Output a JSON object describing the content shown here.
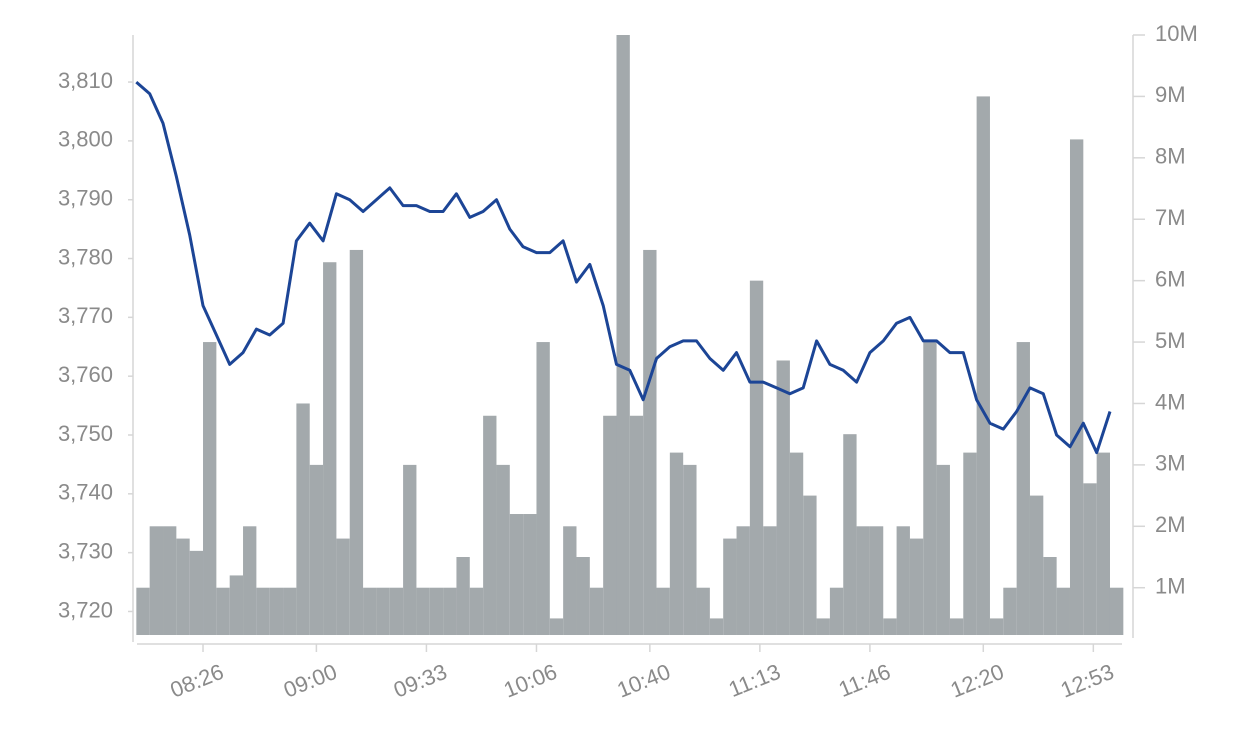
{
  "chart_data": {
    "type": "combo",
    "x": [
      "08:06",
      "08:10",
      "08:14",
      "08:18",
      "08:22",
      "08:26",
      "08:30",
      "08:34",
      "08:38",
      "08:42",
      "08:46",
      "08:50",
      "08:54",
      "08:58",
      "09:02",
      "09:06",
      "09:10",
      "09:14",
      "09:18",
      "09:22",
      "09:26",
      "09:30",
      "09:34",
      "09:38",
      "09:42",
      "09:46",
      "09:50",
      "09:54",
      "09:58",
      "10:02",
      "10:06",
      "10:10",
      "10:14",
      "10:18",
      "10:22",
      "10:26",
      "10:30",
      "10:34",
      "10:38",
      "10:42",
      "10:46",
      "10:50",
      "10:54",
      "10:58",
      "11:02",
      "11:06",
      "11:10",
      "11:14",
      "11:18",
      "11:22",
      "11:26",
      "11:30",
      "11:34",
      "11:38",
      "11:42",
      "11:46",
      "11:50",
      "11:54",
      "11:58",
      "12:02",
      "12:06",
      "12:10",
      "12:14",
      "12:18",
      "12:22",
      "12:26",
      "12:30",
      "12:34",
      "12:38",
      "12:42",
      "12:46",
      "12:50",
      "12:54",
      "12:58"
    ],
    "series": [
      {
        "type": "bar",
        "axis": "y2",
        "color": "#a3a9ac",
        "values": [
          1000000,
          2000000,
          2000000,
          1800000,
          1600000,
          5000000,
          1000000,
          1200000,
          2000000,
          1000000,
          1000000,
          1000000,
          4000000,
          3000000,
          6300000,
          1800000,
          6500000,
          1000000,
          1000000,
          1000000,
          3000000,
          1000000,
          1000000,
          1000000,
          1500000,
          1000000,
          3800000,
          3000000,
          2200000,
          2200000,
          5000000,
          500000,
          2000000,
          1500000,
          1000000,
          3800000,
          10000000,
          3800000,
          6500000,
          1000000,
          3200000,
          3000000,
          1000000,
          500000,
          1800000,
          2000000,
          6000000,
          2000000,
          4700000,
          3200000,
          2500000,
          500000,
          1000000,
          3500000,
          2000000,
          2000000,
          500000,
          2000000,
          1800000,
          5000000,
          3000000,
          500000,
          3200000,
          9000000,
          500000,
          1000000,
          5000000,
          2500000,
          1500000,
          1000000,
          8300000,
          2700000,
          3200000,
          1000000
        ]
      },
      {
        "type": "line",
        "axis": "y",
        "color": "#1c4596",
        "values": [
          3810,
          3808,
          3803,
          3794,
          3784,
          3772,
          3767,
          3762,
          3764,
          3768,
          3767,
          3769,
          3783,
          3786,
          3783,
          3791,
          3790,
          3788,
          3790,
          3792,
          3789,
          3789,
          3788,
          3788,
          3791,
          3787,
          3788,
          3790,
          3785,
          3782,
          3781,
          3781,
          3783,
          3776,
          3779,
          3772,
          3762,
          3761,
          3756,
          3763,
          3765,
          3766,
          3766,
          3763,
          3761,
          3764,
          3759,
          3759,
          3758,
          3757,
          3758,
          3766,
          3762,
          3761,
          3759,
          3764,
          3766,
          3769,
          3770,
          3766,
          3766,
          3764,
          3764,
          3756,
          3752,
          3751,
          3754,
          3758,
          3757,
          3750,
          3748,
          3752,
          3747,
          3754
        ]
      }
    ],
    "xlim": [
      "08:05",
      "13:01"
    ],
    "xticks": [
      "08:26",
      "09:00",
      "09:33",
      "10:06",
      "10:40",
      "11:13",
      "11:46",
      "12:20",
      "12:53"
    ],
    "ylim": [
      3716,
      3818
    ],
    "yticks": [
      {
        "value": 3720,
        "label": "3,720"
      },
      {
        "value": 3730,
        "label": "3,730"
      },
      {
        "value": 3740,
        "label": "3,740"
      },
      {
        "value": 3750,
        "label": "3,750"
      },
      {
        "value": 3760,
        "label": "3,760"
      },
      {
        "value": 3770,
        "label": "3,770"
      },
      {
        "value": 3780,
        "label": "3,780"
      },
      {
        "value": 3790,
        "label": "3,790"
      },
      {
        "value": 3800,
        "label": "3,800"
      },
      {
        "value": 3810,
        "label": "3,810"
      }
    ],
    "y2lim": [
      230000,
      10000000
    ],
    "y2ticks": [
      {
        "value": 1000000,
        "label": "1M"
      },
      {
        "value": 2000000,
        "label": "2M"
      },
      {
        "value": 3000000,
        "label": "3M"
      },
      {
        "value": 4000000,
        "label": "4M"
      },
      {
        "value": 5000000,
        "label": "5M"
      },
      {
        "value": 6000000,
        "label": "6M"
      },
      {
        "value": 7000000,
        "label": "7M"
      },
      {
        "value": 8000000,
        "label": "8M"
      },
      {
        "value": 9000000,
        "label": "9M"
      },
      {
        "value": 10000000,
        "label": "10M"
      }
    ],
    "grid": false
  }
}
